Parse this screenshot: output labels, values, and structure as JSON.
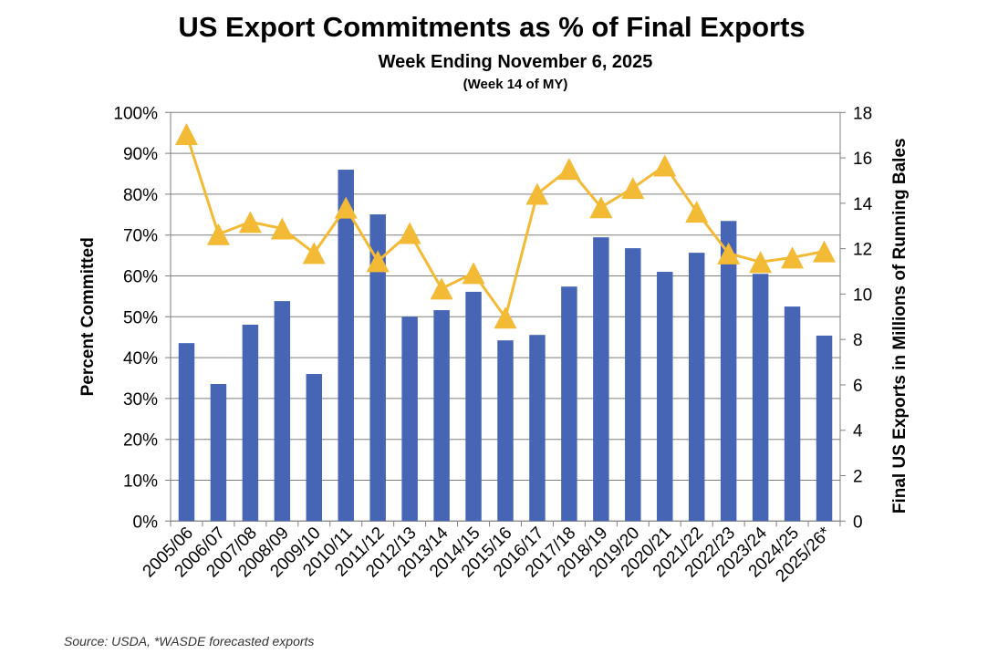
{
  "chart_data": {
    "type": "bar+line",
    "title": "US Export Commitments as % of Final Exports",
    "subtitle": "Week Ending November 6, 2025",
    "subtitle2": "(Week 14 of MY)",
    "ylabel": "Percent Committed",
    "y2label": "Final US Exports in Millions of Running Bales",
    "ylim": [
      0,
      100
    ],
    "y2lim": [
      0,
      18
    ],
    "yticks": [
      "0%",
      "10%",
      "20%",
      "30%",
      "40%",
      "50%",
      "60%",
      "70%",
      "80%",
      "90%",
      "100%"
    ],
    "y2ticks": [
      "0",
      "2",
      "4",
      "6",
      "8",
      "10",
      "12",
      "14",
      "16",
      "18"
    ],
    "grid": true,
    "categories": [
      "2005/06",
      "2006/07",
      "2007/08",
      "2008/09",
      "2009/10",
      "2010/11",
      "2011/12",
      "2012/13",
      "2013/14",
      "2014/15",
      "2015/16",
      "2016/17",
      "2017/18",
      "2018/19",
      "2019/20",
      "2020/21",
      "2021/22",
      "2022/23",
      "2023/24",
      "2024/25",
      "2025/26*"
    ],
    "series": [
      {
        "type": "bar",
        "axis": "right",
        "color": "#4666B5",
        "values": [
          7.84,
          6.04,
          8.65,
          9.69,
          6.48,
          15.48,
          13.51,
          9.0,
          9.29,
          10.1,
          7.96,
          8.2,
          10.33,
          12.5,
          12.02,
          10.98,
          11.82,
          13.22,
          10.89,
          9.45,
          8.17
        ]
      },
      {
        "type": "line",
        "axis": "left",
        "color": "#F3BA35",
        "marker": "triangle",
        "values": [
          94.7,
          70.2,
          73.2,
          71.6,
          65.6,
          76.7,
          63.6,
          70.5,
          56.9,
          60.7,
          49.8,
          80.1,
          86.2,
          76.8,
          81.5,
          87.0,
          75.7,
          65.5,
          63.4,
          64.5,
          66.0
        ]
      }
    ]
  },
  "source": "Source: USDA, *WASDE forecasted exports"
}
